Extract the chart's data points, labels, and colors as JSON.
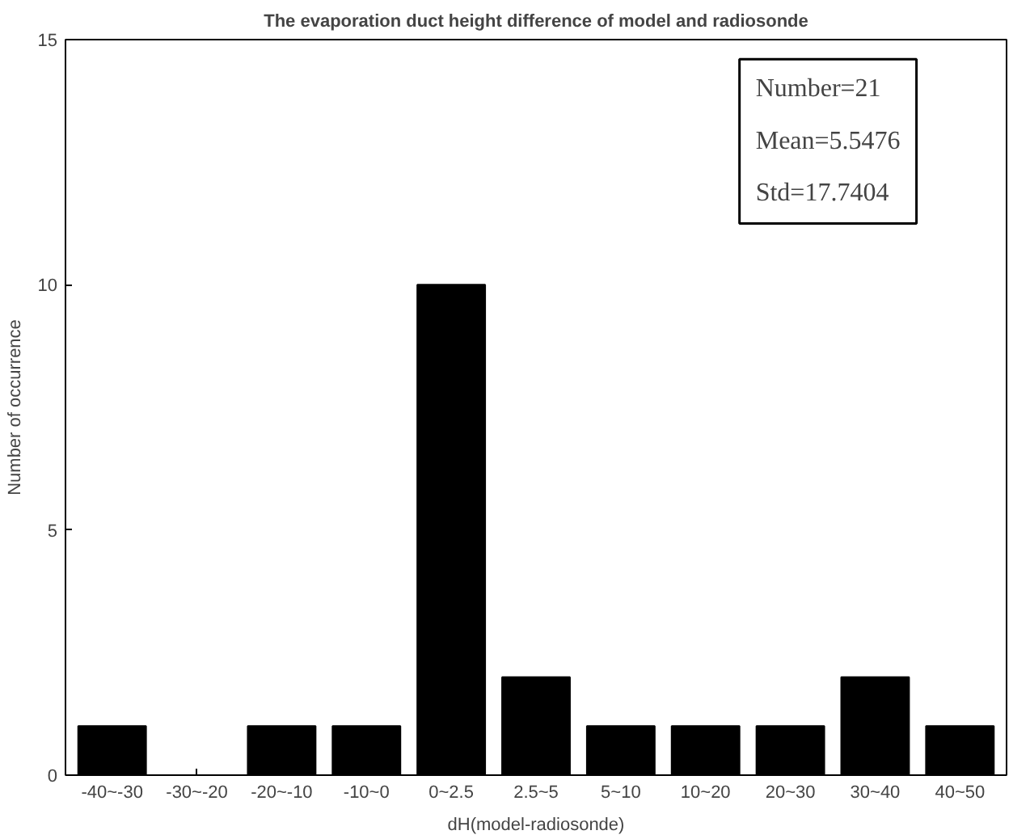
{
  "chart_data": {
    "type": "bar",
    "title": "The evaporation duct height difference of model and radiosonde",
    "xlabel": "dH(model-radiosonde)",
    "ylabel": "Number of occurrence",
    "categories": [
      "-40~-30",
      "-30~-20",
      "-20~-10",
      "-10~0",
      "0~2.5",
      "2.5~5",
      "5~10",
      "10~20",
      "20~30",
      "30~40",
      "40~50"
    ],
    "values": [
      1,
      0,
      1,
      1,
      10,
      2,
      1,
      1,
      1,
      2,
      1
    ],
    "color": "#000000",
    "ylim": [
      0,
      15
    ],
    "yticks": [
      0,
      5,
      10,
      15
    ],
    "grid": false,
    "annotations": [
      "Number=21",
      "Mean=5.5476",
      "Std=17.7404"
    ]
  }
}
